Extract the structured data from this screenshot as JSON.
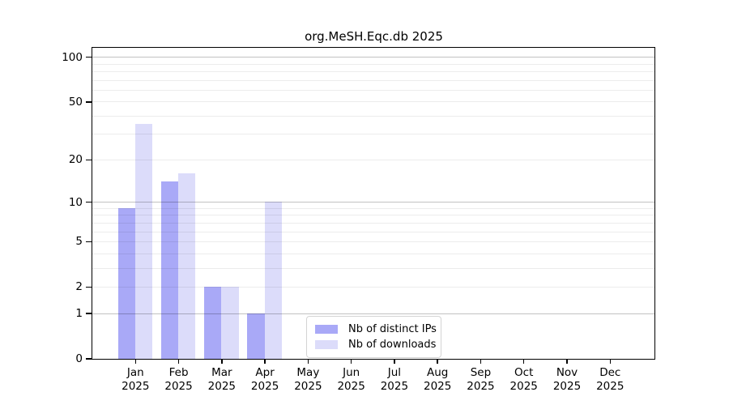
{
  "title": "org.MeSH.Eqc.db 2025",
  "chart_data": {
    "type": "bar",
    "title": "org.MeSH.Eqc.db 2025",
    "categories": [
      "Jan",
      "Feb",
      "Mar",
      "Apr",
      "May",
      "Jun",
      "Jul",
      "Aug",
      "Sep",
      "Oct",
      "Nov",
      "Dec"
    ],
    "year_label": "2025",
    "series": [
      {
        "name": "Nb of distinct IPs",
        "color": "#a9a9f7",
        "values": [
          9,
          14,
          2,
          1,
          0,
          0,
          0,
          0,
          0,
          0,
          0,
          0
        ]
      },
      {
        "name": "Nb of downloads",
        "color": "#dcdcfa",
        "values": [
          35,
          16,
          2,
          10,
          0,
          0,
          0,
          0,
          0,
          0,
          0,
          0
        ]
      }
    ],
    "xlabel": "",
    "ylabel": "",
    "yscale": "log1p",
    "ylim": [
      0,
      115
    ],
    "yticks": [
      0,
      1,
      2,
      5,
      10,
      20,
      50,
      100
    ],
    "minor_gridlines": [
      2,
      3,
      4,
      5,
      6,
      7,
      8,
      9,
      20,
      30,
      40,
      50,
      60,
      70,
      80,
      90
    ],
    "major_gridlines": [
      1,
      10,
      100
    ],
    "grid": "horizontal",
    "legend_position": "inside-bottom-center",
    "colors": {
      "axis": "#000000",
      "grid_minor": "#ececec",
      "grid_major": "#c2c2c2"
    }
  }
}
